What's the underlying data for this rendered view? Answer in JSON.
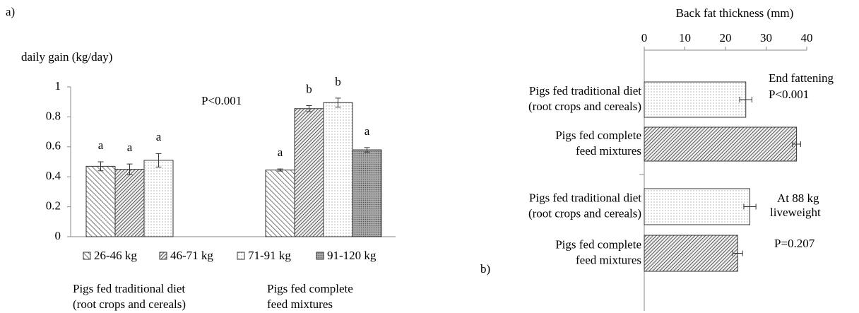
{
  "chart_data": [
    {
      "type": "bar",
      "panel": "a)",
      "ylabel": "daily gain (kg/day)",
      "groups": [
        [
          "Pigs fed traditional diet",
          "(root crops and cereals)"
        ],
        [
          "Pigs fed complete",
          "feed mixtures"
        ]
      ],
      "series": [
        {
          "name": "26-46 kg",
          "pattern": "back-hatch",
          "color": "#555555",
          "values": [
            0.47,
            0.445
          ],
          "errors": [
            0.03,
            0.007
          ],
          "letters": [
            "a",
            "a"
          ]
        },
        {
          "name": "46-71 kg",
          "pattern": "hatch",
          "color": "#333333",
          "values": [
            0.45,
            0.855
          ],
          "errors": [
            0.035,
            0.02
          ],
          "letters": [
            "a",
            "b"
          ]
        },
        {
          "name": "71-91 kg",
          "pattern": "dots",
          "color": "#999999",
          "values": [
            0.51,
            0.895
          ],
          "errors": [
            0.045,
            0.03
          ],
          "letters": [
            "a",
            "b"
          ]
        },
        {
          "name": "91-120 kg",
          "pattern": "dense-dots",
          "color": "#777777",
          "values": [
            null,
            0.58
          ],
          "errors": [
            null,
            0.015
          ],
          "letters": [
            null,
            "a"
          ]
        }
      ],
      "ylim": [
        0,
        1
      ],
      "yticks": [
        0,
        0.2,
        0.4,
        0.6,
        0.8,
        1
      ],
      "annotations": [
        "P<0.001"
      ]
    },
    {
      "type": "hbar",
      "panel": "b)",
      "xlabel": "Back fat thickness (mm)",
      "categories": [
        [
          "Pigs fed traditional diet",
          "(root crops and cereals)"
        ],
        [
          "Pigs fed complete",
          "feed mixtures"
        ],
        [
          "Pigs fed traditional diet",
          "(root crops and cereals)"
        ],
        [
          "Pigs fed complete",
          "feed mixtures"
        ]
      ],
      "values": [
        25,
        37.5,
        26,
        23
      ],
      "errors": [
        1.5,
        1,
        1.5,
        1.2
      ],
      "patterns": [
        "dots",
        "hatch",
        "dots",
        "hatch"
      ],
      "xlim": [
        0,
        40
      ],
      "xticks": [
        0,
        10,
        20,
        30,
        40
      ],
      "annotations": [
        "End fattening",
        "P<0.001",
        "At 88 kg",
        "liveweight",
        "P=0.207"
      ]
    }
  ]
}
